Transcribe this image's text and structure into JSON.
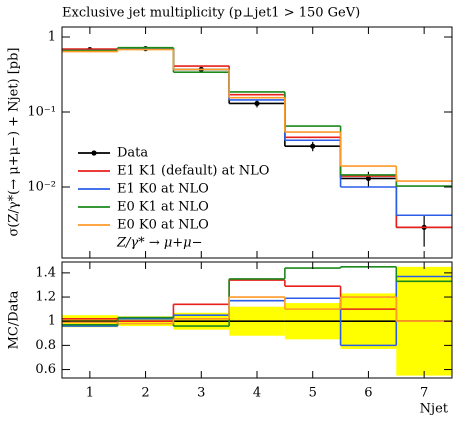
{
  "chart_data": [
    {
      "type": "step",
      "title": "Exclusive jet multiplicity (p⊥jet1 > 150 GeV)",
      "y_label": "σ(Z/γ*(→ μ+μ−) + Njet) [pb]",
      "x": [
        1,
        2,
        3,
        4,
        5,
        6,
        7
      ],
      "xlim": [
        0.5,
        7.5
      ],
      "xticks": [
        1,
        2,
        3,
        4,
        5,
        6,
        7
      ],
      "ylim": [
        0.00113,
        1.36
      ],
      "log_y": true,
      "yticks": [
        1,
        {
          "value": 0.1,
          "label": "10⁻¹"
        },
        {
          "value": 0.01,
          "label": "10⁻²"
        }
      ],
      "legend_note": "Z/γ* → μ+μ−",
      "series": [
        {
          "name": "Data",
          "color": "#000000",
          "values": [
            0.68,
            0.7,
            0.37,
            0.13,
            0.035,
            0.013,
            0.0029
          ],
          "errors": [
            0.03,
            0.03,
            0.03,
            0.015,
            0.005,
            0.003,
            0.0013
          ],
          "markers": true
        },
        {
          "name": "E1 K1 (default) at NLO",
          "color": "#e8211c",
          "values": [
            0.69,
            0.7,
            0.41,
            0.17,
            0.046,
            0.014,
            0.0029
          ]
        },
        {
          "name": "E1 K0 at NLO",
          "color": "#2a5ee8",
          "values": [
            0.66,
            0.7,
            0.37,
            0.145,
            0.042,
            0.01,
            0.0042
          ]
        },
        {
          "name": "E0 K1 at NLO",
          "color": "#1b8a1b",
          "values": [
            0.66,
            0.72,
            0.34,
            0.185,
            0.065,
            0.0145,
            0.0103
          ]
        },
        {
          "name": "E0 K0 at NLO",
          "color": "#ff9a2a",
          "values": [
            0.64,
            0.68,
            0.37,
            0.155,
            0.054,
            0.019,
            0.012
          ]
        }
      ]
    },
    {
      "type": "step",
      "y_label": "MC/Data",
      "x_label": "Njet",
      "x": [
        1,
        2,
        3,
        4,
        5,
        6,
        7
      ],
      "xlim": [
        0.5,
        7.5
      ],
      "xticks": [
        1,
        2,
        3,
        4,
        5,
        6,
        7
      ],
      "ylim": [
        0.53,
        1.49
      ],
      "yticks": [
        0.6,
        0.8,
        1,
        1.2,
        1.4
      ],
      "series": [
        {
          "color": "#000000",
          "values": [
            1,
            1,
            1,
            1,
            1,
            1,
            1
          ],
          "errors": [
            0.05,
            0.04,
            0.07,
            0.12,
            0.15,
            0.23,
            0.45
          ],
          "band_color": "#ffff00"
        },
        {
          "color": "#e8211c",
          "values": [
            1.02,
            1.0,
            1.14,
            1.34,
            1.29,
            1.1,
            1.0
          ]
        },
        {
          "color": "#2a5ee8",
          "values": [
            0.96,
            1.02,
            1.05,
            1.17,
            1.19,
            0.8,
            1.37
          ]
        },
        {
          "color": "#1b8a1b",
          "values": [
            0.97,
            1.03,
            0.96,
            1.35,
            1.44,
            1.45,
            1.33
          ]
        },
        {
          "color": "#ff9a2a",
          "values": [
            0.99,
            0.98,
            1.02,
            1.2,
            1.1,
            1.2,
            1.0
          ]
        }
      ]
    }
  ]
}
